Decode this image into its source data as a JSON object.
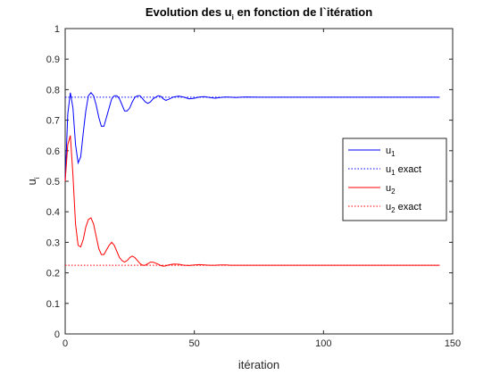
{
  "chart_data": {
    "type": "line",
    "title_prefix": "Evolution des u",
    "title_subscript": "i",
    "title_suffix": " en fonction de l`itération",
    "xlabel": "itération",
    "ylabel_main": "u",
    "ylabel_subscript": "i",
    "xlim": [
      0,
      150
    ],
    "ylim": [
      0,
      1
    ],
    "xticks": [
      0,
      50,
      100,
      150
    ],
    "yticks": [
      0,
      0.1,
      0.2,
      0.3,
      0.4,
      0.5,
      0.6,
      0.7,
      0.8,
      0.9,
      1
    ],
    "grid": false,
    "legend_position": "middle-right",
    "series": [
      {
        "key": "u1",
        "legend_main": "u",
        "legend_sub": "1",
        "legend_suffix": "",
        "color": "#0000ff",
        "style": "solid",
        "x": [
          0,
          1,
          2,
          3,
          4,
          5,
          6,
          7,
          8,
          9,
          10,
          11,
          12,
          13,
          14,
          15,
          16,
          17,
          18,
          19,
          20,
          21,
          22,
          23,
          24,
          25,
          26,
          27,
          28,
          29,
          30,
          31,
          32,
          33,
          34,
          35,
          36,
          37,
          38,
          39,
          40,
          42,
          44,
          46,
          48,
          50,
          52,
          54,
          56,
          58,
          60,
          62,
          64,
          66,
          68,
          70,
          75,
          80,
          90,
          100,
          110,
          120,
          130,
          140,
          145
        ],
        "y": [
          0.5,
          0.72,
          0.79,
          0.74,
          0.62,
          0.56,
          0.58,
          0.66,
          0.73,
          0.78,
          0.79,
          0.78,
          0.75,
          0.71,
          0.68,
          0.68,
          0.71,
          0.74,
          0.77,
          0.78,
          0.78,
          0.77,
          0.75,
          0.73,
          0.73,
          0.74,
          0.76,
          0.775,
          0.78,
          0.78,
          0.77,
          0.76,
          0.755,
          0.76,
          0.77,
          0.775,
          0.78,
          0.778,
          0.77,
          0.765,
          0.768,
          0.776,
          0.779,
          0.775,
          0.77,
          0.772,
          0.776,
          0.777,
          0.774,
          0.772,
          0.774,
          0.776,
          0.775,
          0.774,
          0.775,
          0.776,
          0.775,
          0.775,
          0.775,
          0.775,
          0.775,
          0.775,
          0.775,
          0.775,
          0.775
        ]
      },
      {
        "key": "u1_exact",
        "legend_main": "u",
        "legend_sub": "1",
        "legend_suffix": " exact",
        "color": "#0000ff",
        "style": "dotted",
        "x": [
          0,
          145
        ],
        "y": [
          0.775,
          0.775
        ]
      },
      {
        "key": "u2",
        "legend_main": "u",
        "legend_sub": "2",
        "legend_suffix": "",
        "color": "#ff0000",
        "style": "solid",
        "x": [
          0,
          1,
          2,
          3,
          4,
          5,
          6,
          7,
          8,
          9,
          10,
          11,
          12,
          13,
          14,
          15,
          16,
          17,
          18,
          19,
          20,
          21,
          22,
          23,
          24,
          25,
          26,
          27,
          28,
          29,
          30,
          31,
          32,
          33,
          34,
          35,
          36,
          37,
          38,
          39,
          40,
          42,
          44,
          46,
          48,
          50,
          52,
          54,
          56,
          58,
          60,
          62,
          64,
          66,
          68,
          70,
          75,
          80,
          90,
          100,
          110,
          120,
          130,
          140,
          145
        ],
        "y": [
          0.5,
          0.62,
          0.65,
          0.52,
          0.36,
          0.29,
          0.285,
          0.31,
          0.35,
          0.375,
          0.38,
          0.36,
          0.32,
          0.28,
          0.26,
          0.26,
          0.275,
          0.29,
          0.3,
          0.29,
          0.27,
          0.25,
          0.24,
          0.235,
          0.24,
          0.25,
          0.255,
          0.25,
          0.24,
          0.23,
          0.225,
          0.225,
          0.23,
          0.235,
          0.235,
          0.232,
          0.228,
          0.224,
          0.222,
          0.223,
          0.226,
          0.229,
          0.228,
          0.225,
          0.224,
          0.226,
          0.227,
          0.226,
          0.225,
          0.225,
          0.226,
          0.226,
          0.225,
          0.225,
          0.225,
          0.225,
          0.225,
          0.225,
          0.225,
          0.225,
          0.225,
          0.225,
          0.225,
          0.225,
          0.225
        ]
      },
      {
        "key": "u2_exact",
        "legend_main": "u",
        "legend_sub": "2",
        "legend_suffix": " exact",
        "color": "#ff0000",
        "style": "dotted",
        "x": [
          0,
          145
        ],
        "y": [
          0.225,
          0.225
        ]
      }
    ]
  }
}
